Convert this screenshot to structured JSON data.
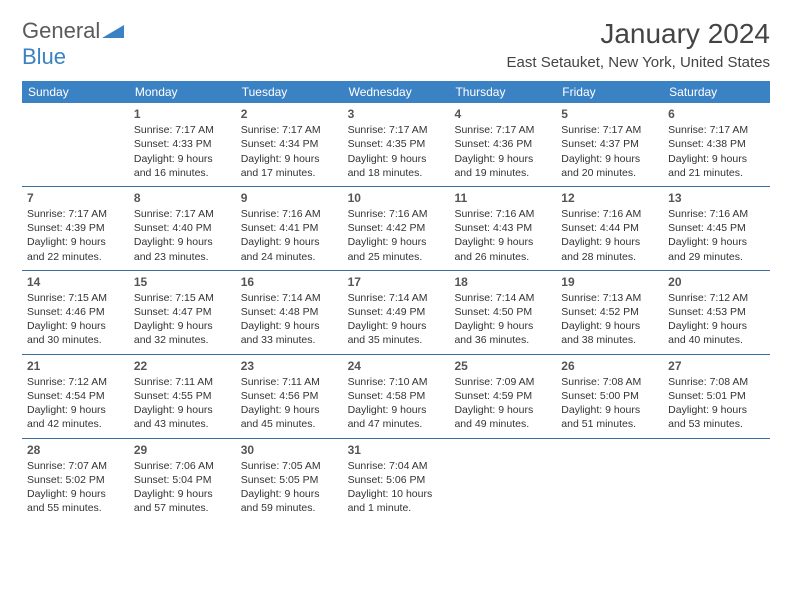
{
  "logo": {
    "text1": "General",
    "text2": "Blue"
  },
  "title": "January 2024",
  "location": "East Setauket, New York, United States",
  "colors": {
    "header_bg": "#3b82c4",
    "header_text": "#ffffff",
    "border": "#3b6ea0",
    "body_text": "#333333",
    "title_text": "#444444"
  },
  "day_names": [
    "Sunday",
    "Monday",
    "Tuesday",
    "Wednesday",
    "Thursday",
    "Friday",
    "Saturday"
  ],
  "weeks": [
    [
      {
        "n": "",
        "sr": "",
        "ss": "",
        "dl": ""
      },
      {
        "n": "1",
        "sr": "Sunrise: 7:17 AM",
        "ss": "Sunset: 4:33 PM",
        "dl": "Daylight: 9 hours and 16 minutes."
      },
      {
        "n": "2",
        "sr": "Sunrise: 7:17 AM",
        "ss": "Sunset: 4:34 PM",
        "dl": "Daylight: 9 hours and 17 minutes."
      },
      {
        "n": "3",
        "sr": "Sunrise: 7:17 AM",
        "ss": "Sunset: 4:35 PM",
        "dl": "Daylight: 9 hours and 18 minutes."
      },
      {
        "n": "4",
        "sr": "Sunrise: 7:17 AM",
        "ss": "Sunset: 4:36 PM",
        "dl": "Daylight: 9 hours and 19 minutes."
      },
      {
        "n": "5",
        "sr": "Sunrise: 7:17 AM",
        "ss": "Sunset: 4:37 PM",
        "dl": "Daylight: 9 hours and 20 minutes."
      },
      {
        "n": "6",
        "sr": "Sunrise: 7:17 AM",
        "ss": "Sunset: 4:38 PM",
        "dl": "Daylight: 9 hours and 21 minutes."
      }
    ],
    [
      {
        "n": "7",
        "sr": "Sunrise: 7:17 AM",
        "ss": "Sunset: 4:39 PM",
        "dl": "Daylight: 9 hours and 22 minutes."
      },
      {
        "n": "8",
        "sr": "Sunrise: 7:17 AM",
        "ss": "Sunset: 4:40 PM",
        "dl": "Daylight: 9 hours and 23 minutes."
      },
      {
        "n": "9",
        "sr": "Sunrise: 7:16 AM",
        "ss": "Sunset: 4:41 PM",
        "dl": "Daylight: 9 hours and 24 minutes."
      },
      {
        "n": "10",
        "sr": "Sunrise: 7:16 AM",
        "ss": "Sunset: 4:42 PM",
        "dl": "Daylight: 9 hours and 25 minutes."
      },
      {
        "n": "11",
        "sr": "Sunrise: 7:16 AM",
        "ss": "Sunset: 4:43 PM",
        "dl": "Daylight: 9 hours and 26 minutes."
      },
      {
        "n": "12",
        "sr": "Sunrise: 7:16 AM",
        "ss": "Sunset: 4:44 PM",
        "dl": "Daylight: 9 hours and 28 minutes."
      },
      {
        "n": "13",
        "sr": "Sunrise: 7:16 AM",
        "ss": "Sunset: 4:45 PM",
        "dl": "Daylight: 9 hours and 29 minutes."
      }
    ],
    [
      {
        "n": "14",
        "sr": "Sunrise: 7:15 AM",
        "ss": "Sunset: 4:46 PM",
        "dl": "Daylight: 9 hours and 30 minutes."
      },
      {
        "n": "15",
        "sr": "Sunrise: 7:15 AM",
        "ss": "Sunset: 4:47 PM",
        "dl": "Daylight: 9 hours and 32 minutes."
      },
      {
        "n": "16",
        "sr": "Sunrise: 7:14 AM",
        "ss": "Sunset: 4:48 PM",
        "dl": "Daylight: 9 hours and 33 minutes."
      },
      {
        "n": "17",
        "sr": "Sunrise: 7:14 AM",
        "ss": "Sunset: 4:49 PM",
        "dl": "Daylight: 9 hours and 35 minutes."
      },
      {
        "n": "18",
        "sr": "Sunrise: 7:14 AM",
        "ss": "Sunset: 4:50 PM",
        "dl": "Daylight: 9 hours and 36 minutes."
      },
      {
        "n": "19",
        "sr": "Sunrise: 7:13 AM",
        "ss": "Sunset: 4:52 PM",
        "dl": "Daylight: 9 hours and 38 minutes."
      },
      {
        "n": "20",
        "sr": "Sunrise: 7:12 AM",
        "ss": "Sunset: 4:53 PM",
        "dl": "Daylight: 9 hours and 40 minutes."
      }
    ],
    [
      {
        "n": "21",
        "sr": "Sunrise: 7:12 AM",
        "ss": "Sunset: 4:54 PM",
        "dl": "Daylight: 9 hours and 42 minutes."
      },
      {
        "n": "22",
        "sr": "Sunrise: 7:11 AM",
        "ss": "Sunset: 4:55 PM",
        "dl": "Daylight: 9 hours and 43 minutes."
      },
      {
        "n": "23",
        "sr": "Sunrise: 7:11 AM",
        "ss": "Sunset: 4:56 PM",
        "dl": "Daylight: 9 hours and 45 minutes."
      },
      {
        "n": "24",
        "sr": "Sunrise: 7:10 AM",
        "ss": "Sunset: 4:58 PM",
        "dl": "Daylight: 9 hours and 47 minutes."
      },
      {
        "n": "25",
        "sr": "Sunrise: 7:09 AM",
        "ss": "Sunset: 4:59 PM",
        "dl": "Daylight: 9 hours and 49 minutes."
      },
      {
        "n": "26",
        "sr": "Sunrise: 7:08 AM",
        "ss": "Sunset: 5:00 PM",
        "dl": "Daylight: 9 hours and 51 minutes."
      },
      {
        "n": "27",
        "sr": "Sunrise: 7:08 AM",
        "ss": "Sunset: 5:01 PM",
        "dl": "Daylight: 9 hours and 53 minutes."
      }
    ],
    [
      {
        "n": "28",
        "sr": "Sunrise: 7:07 AM",
        "ss": "Sunset: 5:02 PM",
        "dl": "Daylight: 9 hours and 55 minutes."
      },
      {
        "n": "29",
        "sr": "Sunrise: 7:06 AM",
        "ss": "Sunset: 5:04 PM",
        "dl": "Daylight: 9 hours and 57 minutes."
      },
      {
        "n": "30",
        "sr": "Sunrise: 7:05 AM",
        "ss": "Sunset: 5:05 PM",
        "dl": "Daylight: 9 hours and 59 minutes."
      },
      {
        "n": "31",
        "sr": "Sunrise: 7:04 AM",
        "ss": "Sunset: 5:06 PM",
        "dl": "Daylight: 10 hours and 1 minute."
      },
      {
        "n": "",
        "sr": "",
        "ss": "",
        "dl": ""
      },
      {
        "n": "",
        "sr": "",
        "ss": "",
        "dl": ""
      },
      {
        "n": "",
        "sr": "",
        "ss": "",
        "dl": ""
      }
    ]
  ]
}
